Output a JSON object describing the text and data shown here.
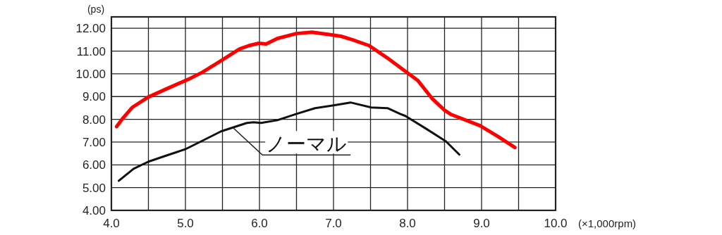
{
  "chart_data": {
    "type": "line",
    "ylabel": "(ps)",
    "xlabel": "(×1,000rpm)",
    "xlim": [
      4.0,
      10.0
    ],
    "ylim": [
      4.0,
      12.5
    ],
    "xticks": [
      {
        "value": 4.0,
        "label": "4.0"
      },
      {
        "value": 4.5,
        "label": null
      },
      {
        "value": 5.0,
        "label": "5.0"
      },
      {
        "value": 5.5,
        "label": null
      },
      {
        "value": 6.0,
        "label": "6.0"
      },
      {
        "value": 6.5,
        "label": null
      },
      {
        "value": 7.0,
        "label": "7.0"
      },
      {
        "value": 7.5,
        "label": null
      },
      {
        "value": 8.0,
        "label": "8.0"
      },
      {
        "value": 8.5,
        "label": null
      },
      {
        "value": 9.0,
        "label": "9.0"
      },
      {
        "value": 9.5,
        "label": null
      },
      {
        "value": 10.0,
        "label": "10.0"
      }
    ],
    "yticks": [
      {
        "value": 4,
        "label": "4.00"
      },
      {
        "value": 5,
        "label": "5.00"
      },
      {
        "value": 6,
        "label": "6.00"
      },
      {
        "value": 7,
        "label": "7.00"
      },
      {
        "value": 8,
        "label": "8.00"
      },
      {
        "value": 9,
        "label": "9.00"
      },
      {
        "value": 10,
        "label": "10.00"
      },
      {
        "value": 11,
        "label": "11.00"
      },
      {
        "value": 12,
        "label": "12.00"
      }
    ],
    "grid": true,
    "marker": "none",
    "line_style": "solid",
    "series": [
      {
        "color": "#ff0000",
        "x": [
          4.07,
          4.14,
          4.28,
          4.5,
          4.78,
          5.04,
          5.23,
          5.48,
          5.73,
          5.86,
          5.99,
          6.09,
          6.24,
          6.5,
          6.71,
          6.97,
          7.1,
          7.26,
          7.48,
          7.73,
          7.95,
          8.14,
          8.33,
          8.5,
          8.59,
          8.98,
          9.22,
          9.45
        ],
        "values": [
          7.68,
          7.99,
          8.52,
          8.98,
          9.39,
          9.76,
          10.07,
          10.57,
          11.09,
          11.24,
          11.34,
          11.31,
          11.55,
          11.77,
          11.83,
          11.71,
          11.65,
          11.49,
          11.24,
          10.69,
          10.16,
          9.7,
          8.92,
          8.4,
          8.21,
          7.72,
          7.25,
          6.76
        ]
      },
      {
        "color": "#111111",
        "x": [
          4.1,
          4.3,
          4.5,
          4.78,
          5.0,
          5.23,
          5.48,
          5.64,
          5.83,
          5.92,
          6.02,
          6.24,
          6.5,
          6.75,
          7.0,
          7.23,
          7.51,
          7.73,
          7.9,
          7.97,
          8.25,
          8.52,
          8.7
        ],
        "values": [
          5.3,
          5.83,
          6.14,
          6.45,
          6.69,
          7.06,
          7.47,
          7.64,
          7.84,
          7.87,
          7.84,
          7.96,
          8.24,
          8.49,
          8.61,
          8.74,
          8.52,
          8.49,
          8.24,
          8.15,
          7.59,
          7.03,
          6.45
        ]
      }
    ],
    "annotations": [
      {
        "text": "ノーマル",
        "x": 5.64,
        "y": 7.64
      }
    ]
  }
}
